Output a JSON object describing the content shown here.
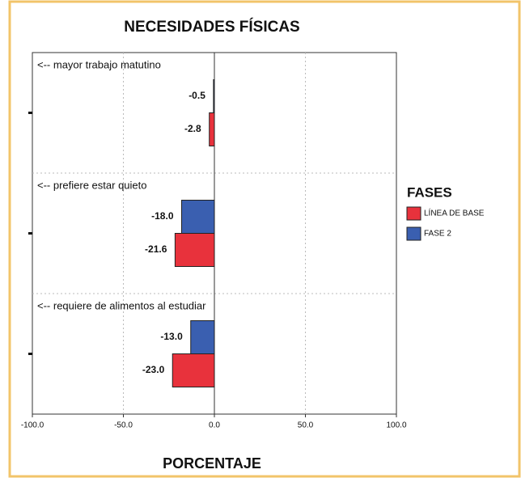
{
  "chart_data": {
    "type": "barh",
    "title": "NECESIDADES FÍSICAS",
    "xlabel": "PORCENTAJE",
    "legend_title": "FASES",
    "legend_position": "right",
    "categories": [
      "<-- mayor trabajo matutino",
      "<-- prefiere estar quieto",
      "<-- requiere de alimentos al estudiar"
    ],
    "series": [
      {
        "name": "LÍNEA DE BASE",
        "color": "#e8323c",
        "values": [
          -2.8,
          -21.6,
          -23.0
        ],
        "value_labels": [
          "-2.8",
          "-21.6",
          "-23.0"
        ]
      },
      {
        "name": "FASE 2",
        "color": "#3a5fb0",
        "values": [
          -0.5,
          -18.0,
          -13.0
        ],
        "value_labels": [
          "-0.5",
          "-18.0",
          "-13.0"
        ]
      }
    ],
    "xlim": [
      -100,
      100
    ],
    "xticks": [
      {
        "value": -100,
        "label": "-100.0"
      },
      {
        "value": -50,
        "label": "-50.0"
      },
      {
        "value": 0,
        "label": "0.0"
      },
      {
        "value": 50,
        "label": "50.0"
      },
      {
        "value": 100,
        "label": "100.0"
      }
    ],
    "grid": true
  }
}
